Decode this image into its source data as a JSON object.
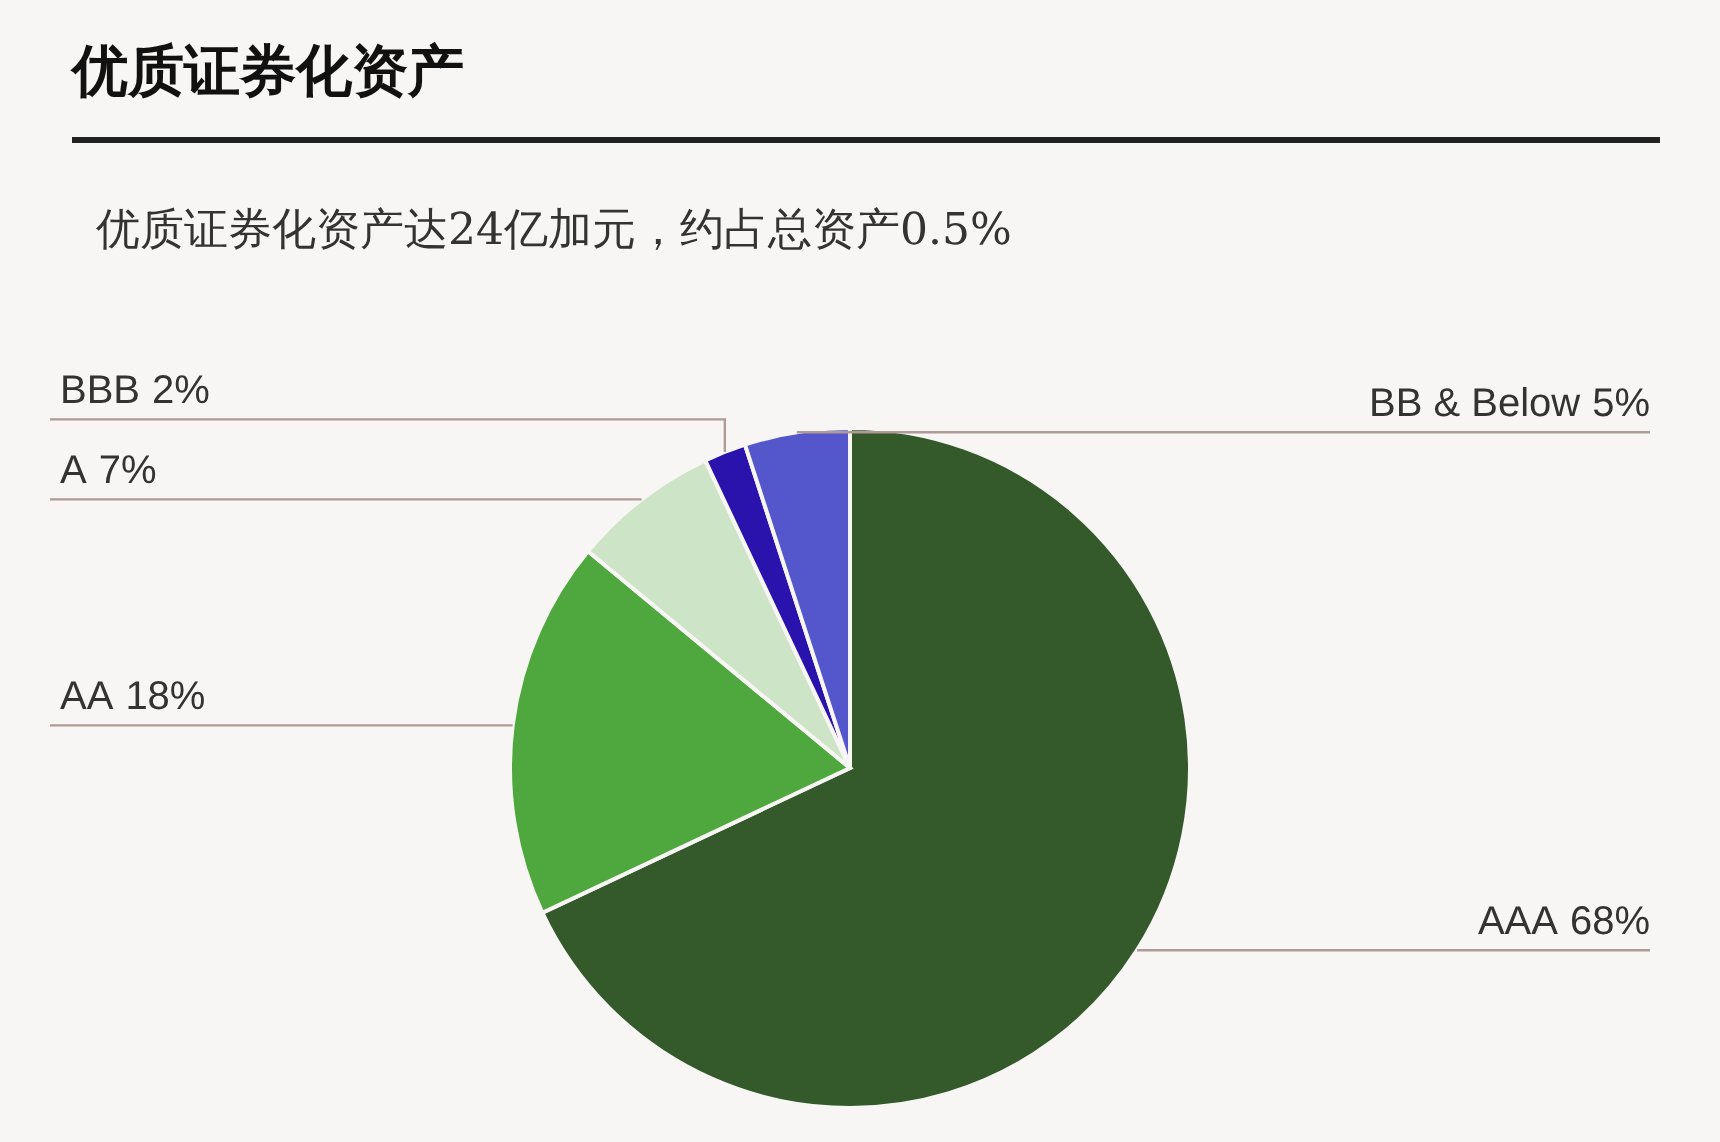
{
  "chart_data": {
    "type": "pie",
    "title": "优质证券化资产",
    "subtitle": "优质证券化资产达24亿加元，约占总资产0.5%",
    "categories": [
      "AAA",
      "AA",
      "A",
      "BBB",
      "BB & Below"
    ],
    "values": [
      68,
      18,
      7,
      2,
      5
    ],
    "value_labels": [
      "68%",
      "18%",
      "7%",
      "2%",
      "5%"
    ],
    "colors": [
      "#34592a",
      "#4fa83e",
      "#cde5c6",
      "#2a12ad",
      "#5456cb"
    ]
  }
}
